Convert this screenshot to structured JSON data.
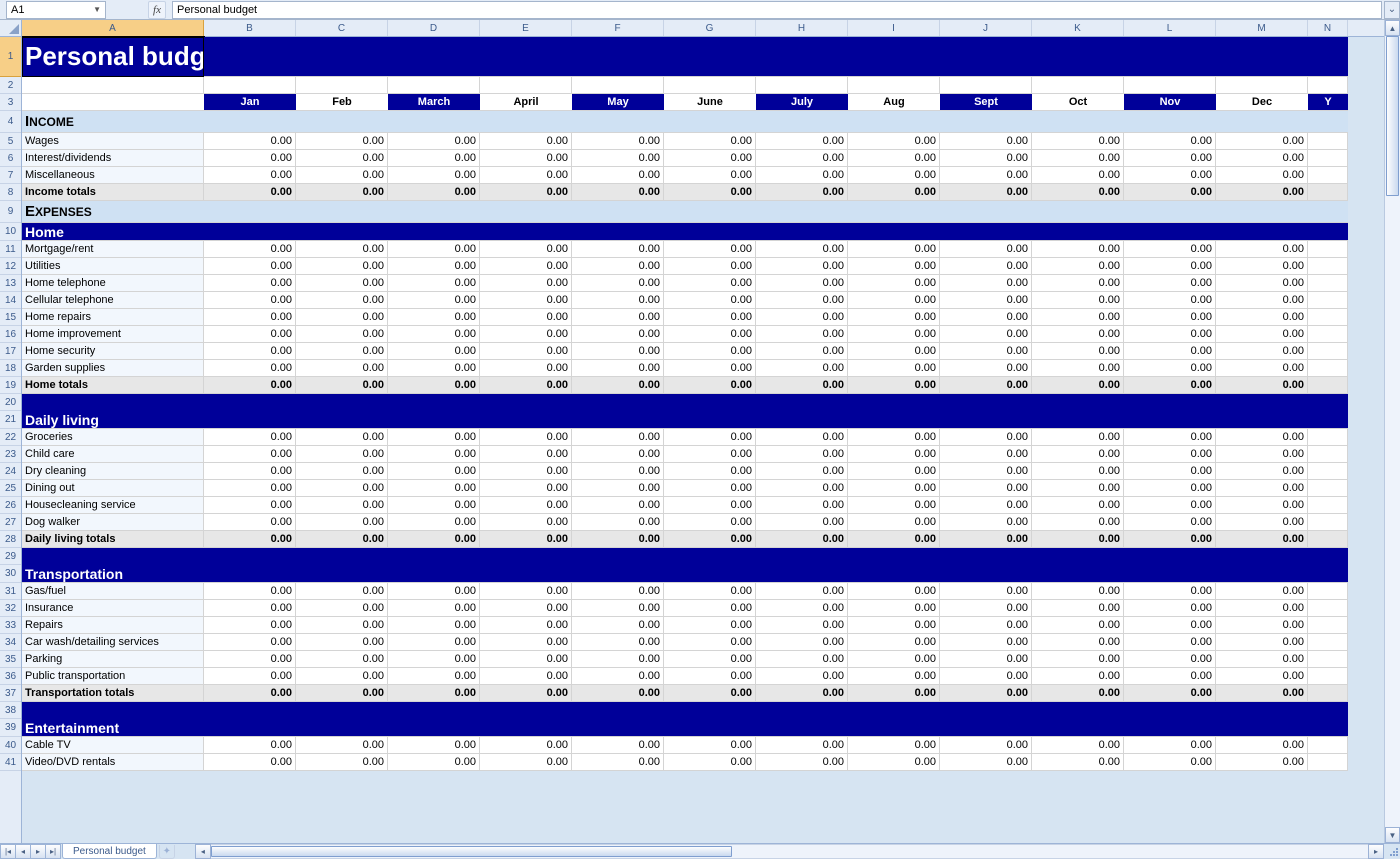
{
  "formula_bar": {
    "cell_ref": "A1",
    "fx_label": "fx",
    "formula": "Personal budget"
  },
  "columns": [
    {
      "letter": "A",
      "width": 182
    },
    {
      "letter": "B",
      "width": 92
    },
    {
      "letter": "C",
      "width": 92
    },
    {
      "letter": "D",
      "width": 92
    },
    {
      "letter": "E",
      "width": 92
    },
    {
      "letter": "F",
      "width": 92
    },
    {
      "letter": "G",
      "width": 92
    },
    {
      "letter": "H",
      "width": 92
    },
    {
      "letter": "I",
      "width": 92
    },
    {
      "letter": "J",
      "width": 92
    },
    {
      "letter": "K",
      "width": 92
    },
    {
      "letter": "L",
      "width": 92
    },
    {
      "letter": "M",
      "width": 92
    },
    {
      "letter": "N",
      "width": 40
    }
  ],
  "months": [
    "Jan",
    "Feb",
    "March",
    "April",
    "May",
    "June",
    "July",
    "Aug",
    "Sept",
    "Oct",
    "Nov",
    "Dec",
    "Y"
  ],
  "month_alt_cols": [
    2,
    4,
    6,
    8,
    10,
    12
  ],
  "default_value": "0.00",
  "rows": [
    {
      "n": 1,
      "type": "title",
      "label": "Personal budget",
      "h": 40
    },
    {
      "n": 2,
      "type": "blank"
    },
    {
      "n": 3,
      "type": "months"
    },
    {
      "n": 4,
      "type": "section",
      "label": "Income",
      "h": 22
    },
    {
      "n": 5,
      "type": "item",
      "label": "Wages"
    },
    {
      "n": 6,
      "type": "item",
      "label": "Interest/dividends"
    },
    {
      "n": 7,
      "type": "item",
      "label": "Miscellaneous"
    },
    {
      "n": 8,
      "type": "total",
      "label": "Income totals"
    },
    {
      "n": 9,
      "type": "section",
      "label": "Expenses",
      "h": 22
    },
    {
      "n": 10,
      "type": "subsection",
      "label": "Home",
      "h": 18
    },
    {
      "n": 11,
      "type": "item",
      "label": "Mortgage/rent"
    },
    {
      "n": 12,
      "type": "item",
      "label": "Utilities"
    },
    {
      "n": 13,
      "type": "item",
      "label": "Home telephone"
    },
    {
      "n": 14,
      "type": "item",
      "label": "Cellular telephone"
    },
    {
      "n": 15,
      "type": "item",
      "label": "Home repairs"
    },
    {
      "n": 16,
      "type": "item",
      "label": "Home improvement"
    },
    {
      "n": 17,
      "type": "item",
      "label": "Home security"
    },
    {
      "n": 18,
      "type": "item",
      "label": "Garden supplies"
    },
    {
      "n": 19,
      "type": "total",
      "label": "Home totals"
    },
    {
      "n": 20,
      "type": "spacer"
    },
    {
      "n": 21,
      "type": "subsection",
      "label": "Daily living",
      "h": 18
    },
    {
      "n": 22,
      "type": "item",
      "label": "Groceries"
    },
    {
      "n": 23,
      "type": "item",
      "label": "Child care"
    },
    {
      "n": 24,
      "type": "item",
      "label": "Dry cleaning"
    },
    {
      "n": 25,
      "type": "item",
      "label": "Dining out"
    },
    {
      "n": 26,
      "type": "item",
      "label": "Housecleaning service"
    },
    {
      "n": 27,
      "type": "item",
      "label": "Dog walker"
    },
    {
      "n": 28,
      "type": "total",
      "label": "Daily living totals"
    },
    {
      "n": 29,
      "type": "spacer"
    },
    {
      "n": 30,
      "type": "subsection",
      "label": "Transportation",
      "h": 18
    },
    {
      "n": 31,
      "type": "item",
      "label": "Gas/fuel"
    },
    {
      "n": 32,
      "type": "item",
      "label": "Insurance"
    },
    {
      "n": 33,
      "type": "item",
      "label": "Repairs"
    },
    {
      "n": 34,
      "type": "item",
      "label": "Car wash/detailing services"
    },
    {
      "n": 35,
      "type": "item",
      "label": "Parking"
    },
    {
      "n": 36,
      "type": "item",
      "label": "Public transportation"
    },
    {
      "n": 37,
      "type": "total",
      "label": "Transportation totals"
    },
    {
      "n": 38,
      "type": "spacer"
    },
    {
      "n": 39,
      "type": "subsection",
      "label": "Entertainment",
      "h": 18
    },
    {
      "n": 40,
      "type": "item",
      "label": "Cable TV"
    },
    {
      "n": 41,
      "type": "item",
      "label": "Video/DVD rentals"
    }
  ],
  "sheet_tab": "Personal budget",
  "colors": {
    "header_bg": "#e4ecf7",
    "dark_blue": "#000099",
    "light_blue_section": "#cfe1f3",
    "item_first_col": "#f2f7fd",
    "total_bg": "#e7e7e7",
    "grid_border": "#d4d4d4"
  }
}
